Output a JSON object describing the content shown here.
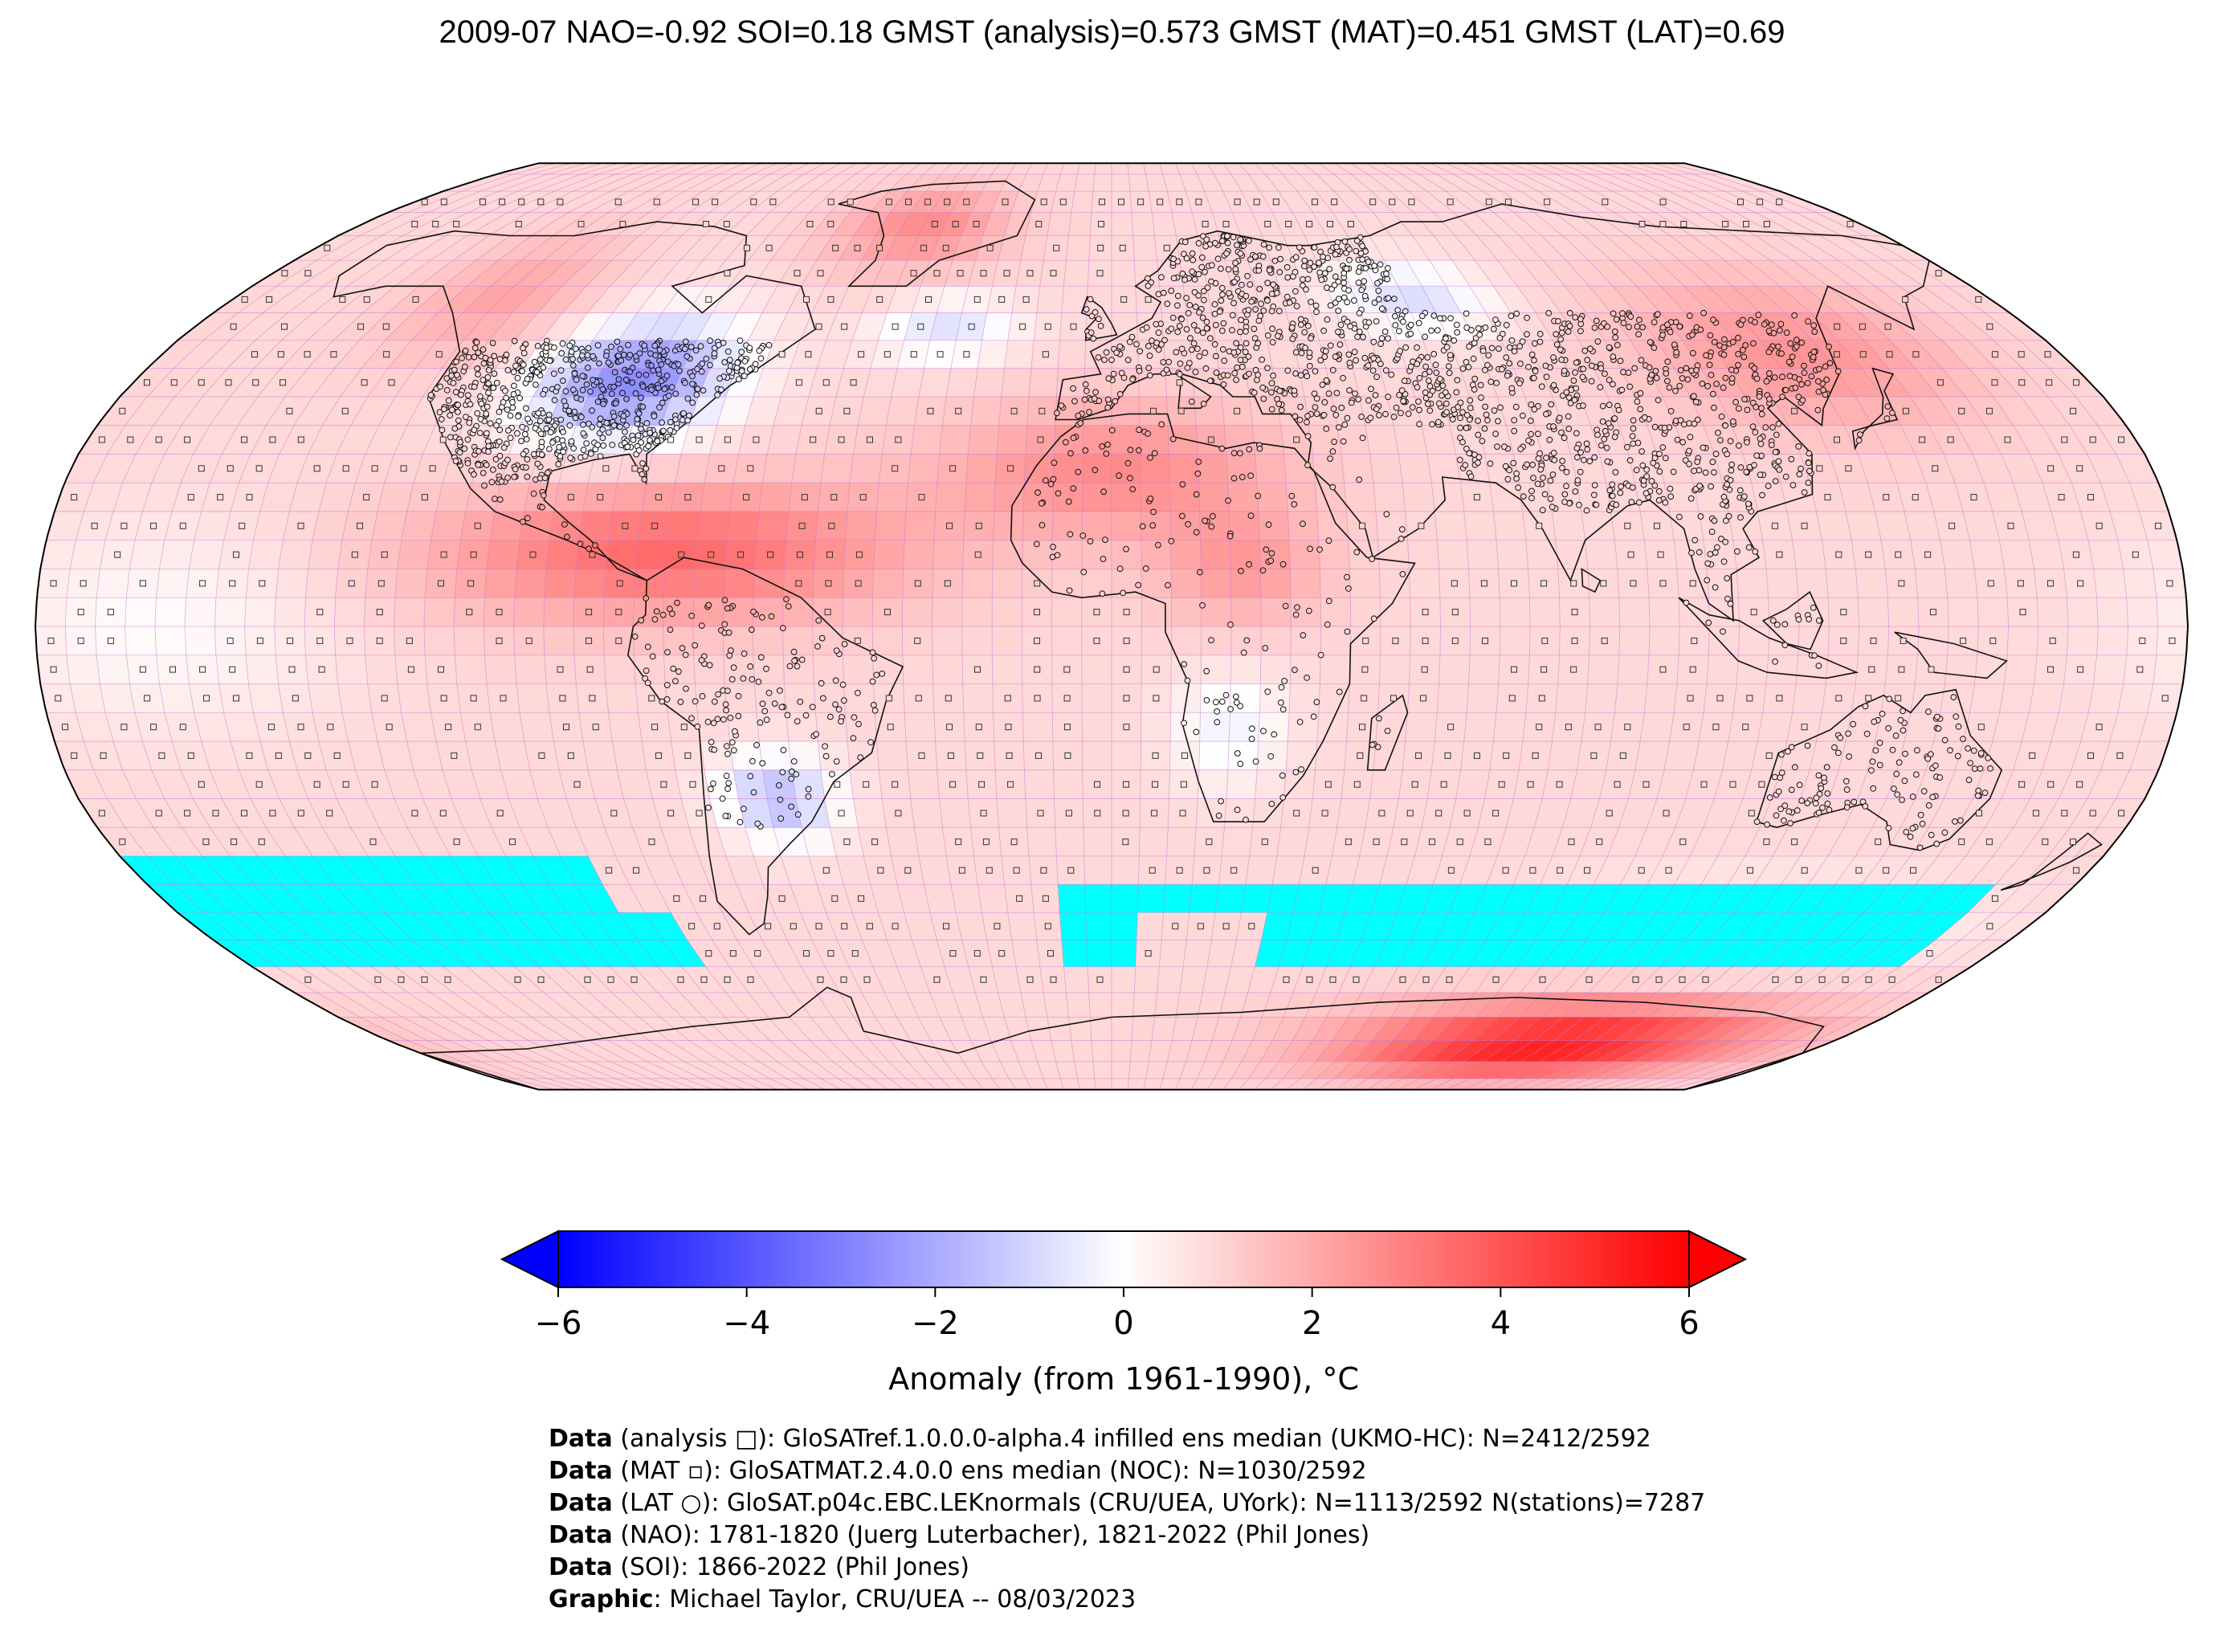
{
  "title": "2009-07 NAO=-0.92 SOI=0.18 GMST (analysis)=0.573 GMST (MAT)=0.451 GMST (LAT)=0.69",
  "colorbar": {
    "label": "Anomaly (from 1961-1990), °C",
    "ticks": [
      "−6",
      "−4",
      "−2",
      "0",
      "2",
      "4",
      "6"
    ],
    "range": [
      -6,
      6
    ],
    "colors": {
      "min": "#0000ff",
      "mid": "#ffffff",
      "max": "#ff0000"
    }
  },
  "map": {
    "projection": "Robinson",
    "missing_data_color": "#00ffff",
    "grid_color": "#c070d0"
  },
  "credits": [
    {
      "bold": "Data",
      "text": " (analysis □): GloSATref.1.0.0.0-alpha.4 infilled ens median (UKMO-HC): N=2412/2592"
    },
    {
      "bold": "Data",
      "text": " (MAT ▫): GloSATMAT.2.4.0.0 ens median (NOC): N=1030/2592"
    },
    {
      "bold": "Data",
      "text": " (LAT ○): GloSAT.p04c.EBC.LEKnormals (CRU/UEA, UYork): N=1113/2592 N(stations)=7287"
    },
    {
      "bold": "Data",
      "text": " (NAO): 1781-1820 (Juerg Luterbacher), 1821-2022 (Phil Jones)"
    },
    {
      "bold": "Data",
      "text": " (SOI): 1866-2022 (Phil Jones)"
    },
    {
      "bold": "Graphic",
      "text": ": Michael Taylor, CRU/UEA -- 08/03/2023"
    }
  ]
}
